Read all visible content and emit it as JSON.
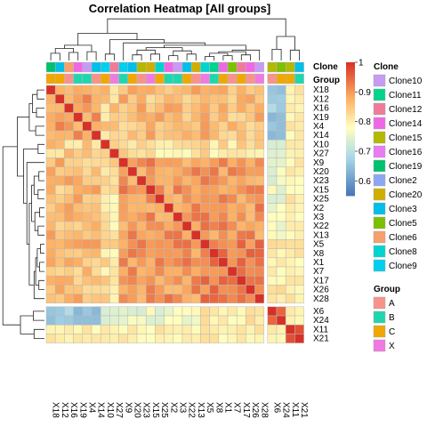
{
  "chart_data": {
    "type": "heatmap",
    "title": "Correlation Heatmap [All groups]",
    "rows": [
      "X18",
      "X12",
      "X16",
      "X19",
      "X4",
      "X14",
      "X10",
      "X27",
      "X9",
      "X20",
      "X23",
      "X15",
      "X25",
      "X2",
      "X3",
      "X22",
      "X13",
      "X5",
      "X8",
      "X1",
      "X7",
      "X17",
      "X26",
      "X28",
      "X6",
      "X24",
      "X11",
      "X21"
    ],
    "columns": [
      "X18",
      "X12",
      "X16",
      "X19",
      "X4",
      "X14",
      "X10",
      "X27",
      "X9",
      "X20",
      "X23",
      "X15",
      "X25",
      "X2",
      "X3",
      "X22",
      "X13",
      "X5",
      "X8",
      "X1",
      "X7",
      "X17",
      "X26",
      "X28",
      "X6",
      "X24",
      "X11",
      "X21"
    ],
    "row_gaps_after": [
      23
    ],
    "column_gaps_after": [
      23
    ],
    "color_scale": {
      "range": [
        0.55,
        1.0
      ],
      "ticks": [
        1,
        0.9,
        0.8,
        0.7,
        0.6
      ],
      "stops": [
        {
          "v": 0.55,
          "color": "#4575b4"
        },
        {
          "v": 0.68,
          "color": "#abd9e9"
        },
        {
          "v": 0.78,
          "color": "#ffffbf"
        },
        {
          "v": 0.88,
          "color": "#fdae61"
        },
        {
          "v": 1.0,
          "color": "#d73027"
        }
      ]
    },
    "annotations": {
      "clone_title": "Clone",
      "group_title": "Group",
      "clone_per_column": [
        "Clone19",
        "Clone3",
        "Clone6",
        "Clone14",
        "Clone10",
        "Clone3",
        "Clone9",
        "Clone12",
        "Clone9",
        "Clone3",
        "Clone15",
        "Clone20",
        "Clone8",
        "Clone14",
        "Clone10",
        "Clone3",
        "Clone20",
        "Clone8",
        "Clone11",
        "Clone14",
        "Clone5",
        "Clone12",
        "Clone14",
        "Clone10",
        "Clone15",
        "Clone5",
        "Clone15",
        "Clone3"
      ],
      "group_per_column": [
        "C",
        "C",
        "A",
        "B",
        "B",
        "A",
        "C",
        "X",
        "B",
        "C",
        "A",
        "X",
        "C",
        "B",
        "B",
        "C",
        "A",
        "X",
        "B",
        "C",
        "A",
        "C",
        "A",
        "X",
        "A",
        "C",
        "C",
        "B"
      ],
      "clone_colors": {
        "Clone10": "#c79bf2",
        "Clone11": "#00d48a",
        "Clone12": "#f07a9a",
        "Clone14": "#f067e6",
        "Clone15": "#b3b800",
        "Clone16": "#e97bf3",
        "Clone19": "#00c16c",
        "Clone2": "#8ba7f4",
        "Clone20": "#cfae00",
        "Clone3": "#00bfe8",
        "Clone5": "#7cc000",
        "Clone6": "#f6a06b",
        "Clone8": "#00d4d0",
        "Clone9": "#00cfee"
      },
      "group_colors": {
        "A": "#f7938a",
        "B": "#20d6ae",
        "C": "#f0a800",
        "X": "#f07ae0"
      }
    },
    "legend": {
      "clone_title": "Clone",
      "clone_items": [
        "Clone10",
        "Clone11",
        "Clone12",
        "Clone14",
        "Clone15",
        "Clone16",
        "Clone19",
        "Clone2",
        "Clone20",
        "Clone3",
        "Clone5",
        "Clone6",
        "Clone8",
        "Clone9"
      ],
      "group_title": "Group",
      "group_items": [
        "A",
        "B",
        "C",
        "X"
      ],
      "placement": "right"
    }
  }
}
